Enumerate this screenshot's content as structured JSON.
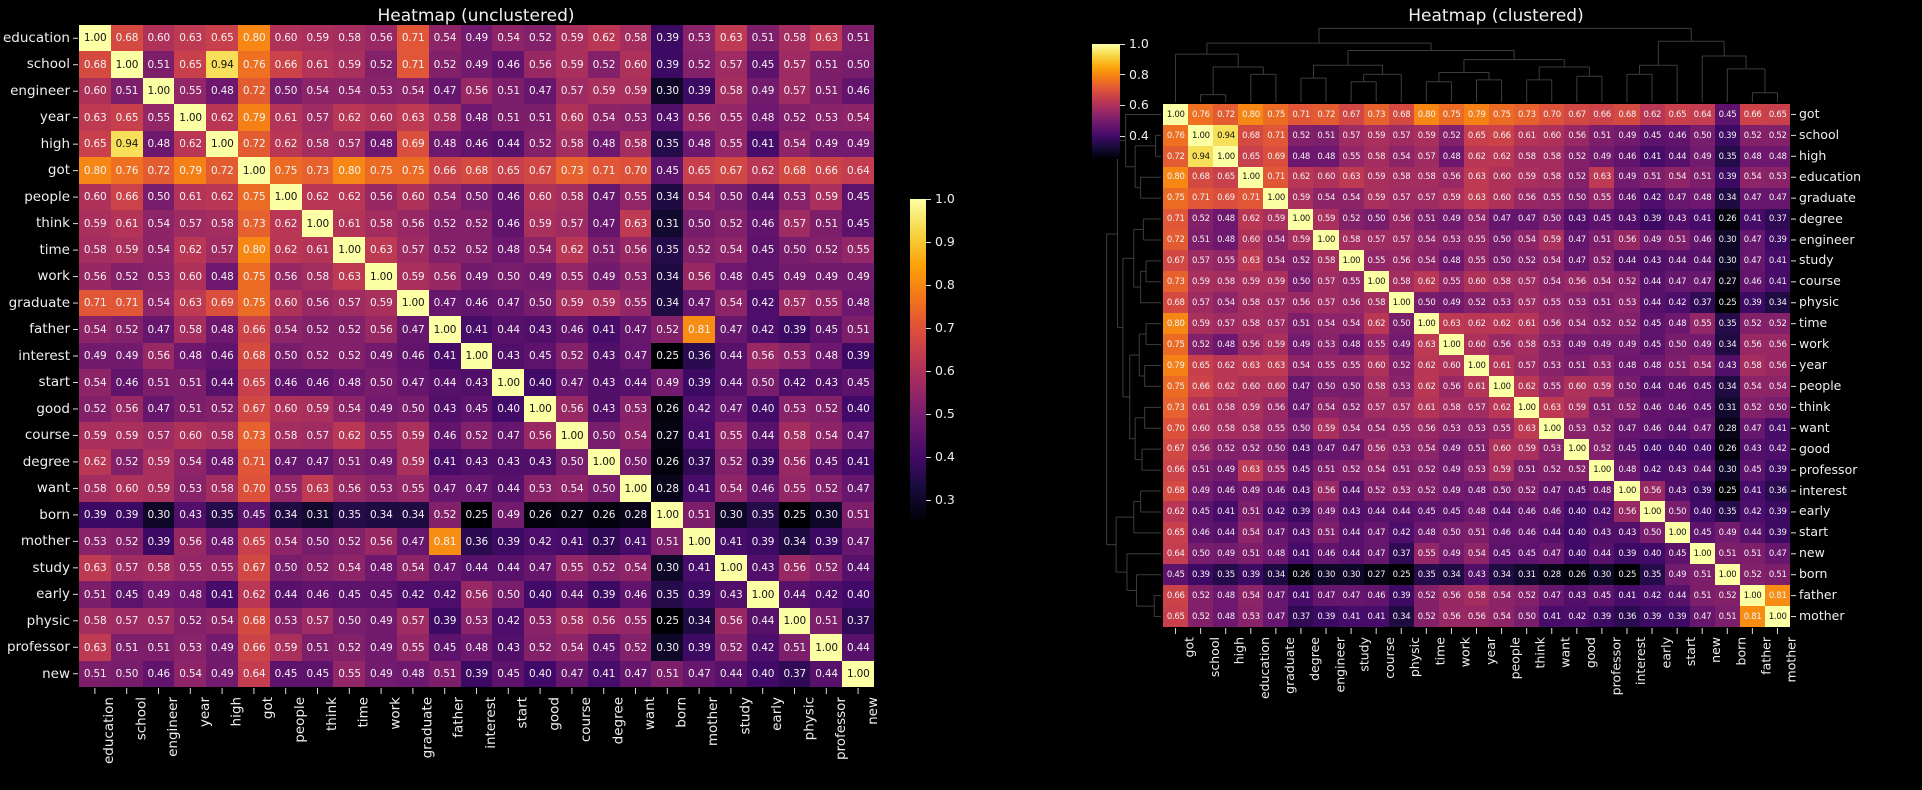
{
  "chart_data": {
    "type": "heatmap",
    "panels": [
      {
        "title": "Heatmap (unclustered)",
        "order": "original"
      },
      {
        "title": "Heatmap (clustered)",
        "order": "clustered",
        "dendrograms": [
          "top",
          "left"
        ]
      }
    ],
    "labels": [
      "education",
      "school",
      "engineer",
      "year",
      "high",
      "got",
      "people",
      "think",
      "time",
      "work",
      "graduate",
      "father",
      "interest",
      "start",
      "good",
      "course",
      "degree",
      "want",
      "born",
      "mother",
      "study",
      "early",
      "physic",
      "professor",
      "new"
    ],
    "clustered_order": [
      "got",
      "school",
      "high",
      "education",
      "graduate",
      "degree",
      "engineer",
      "study",
      "course",
      "physic",
      "time",
      "work",
      "year",
      "people",
      "think",
      "want",
      "good",
      "professor",
      "interest",
      "early",
      "start",
      "new",
      "born",
      "father",
      "mother"
    ],
    "matrix": [
      [
        1.0,
        0.68,
        0.6,
        0.63,
        0.65,
        0.8,
        0.6,
        0.59,
        0.58,
        0.56,
        0.71,
        0.54,
        0.49,
        0.54,
        0.52,
        0.59,
        0.62,
        0.58,
        0.39,
        0.53,
        0.63,
        0.51,
        0.58,
        0.63,
        0.51
      ],
      [
        0.68,
        1.0,
        0.51,
        0.65,
        0.94,
        0.76,
        0.66,
        0.61,
        0.59,
        0.52,
        0.71,
        0.52,
        0.49,
        0.46,
        0.56,
        0.59,
        0.52,
        0.6,
        0.39,
        0.52,
        0.57,
        0.45,
        0.57,
        0.51,
        0.5
      ],
      [
        0.6,
        0.51,
        1.0,
        0.55,
        0.48,
        0.72,
        0.5,
        0.54,
        0.54,
        0.53,
        0.54,
        0.47,
        0.56,
        0.51,
        0.47,
        0.57,
        0.59,
        0.59,
        0.3,
        0.39,
        0.58,
        0.49,
        0.57,
        0.51,
        0.46
      ],
      [
        0.63,
        0.65,
        0.55,
        1.0,
        0.62,
        0.79,
        0.61,
        0.57,
        0.62,
        0.6,
        0.63,
        0.58,
        0.48,
        0.51,
        0.51,
        0.6,
        0.54,
        0.53,
        0.43,
        0.56,
        0.55,
        0.48,
        0.52,
        0.53,
        0.54
      ],
      [
        0.65,
        0.94,
        0.48,
        0.62,
        1.0,
        0.72,
        0.62,
        0.58,
        0.57,
        0.48,
        0.69,
        0.48,
        0.46,
        0.44,
        0.52,
        0.58,
        0.48,
        0.58,
        0.35,
        0.48,
        0.55,
        0.41,
        0.54,
        0.49,
        0.49
      ],
      [
        0.8,
        0.76,
        0.72,
        0.79,
        0.72,
        1.0,
        0.75,
        0.73,
        0.8,
        0.75,
        0.75,
        0.66,
        0.68,
        0.65,
        0.67,
        0.73,
        0.71,
        0.7,
        0.45,
        0.65,
        0.67,
        0.62,
        0.68,
        0.66,
        0.64
      ],
      [
        0.6,
        0.66,
        0.5,
        0.61,
        0.62,
        0.75,
        1.0,
        0.62,
        0.62,
        0.56,
        0.6,
        0.54,
        0.5,
        0.46,
        0.6,
        0.58,
        0.47,
        0.55,
        0.34,
        0.54,
        0.5,
        0.44,
        0.53,
        0.59,
        0.45
      ],
      [
        0.59,
        0.61,
        0.54,
        0.57,
        0.58,
        0.73,
        0.62,
        1.0,
        0.61,
        0.58,
        0.56,
        0.52,
        0.52,
        0.46,
        0.59,
        0.57,
        0.47,
        0.63,
        0.31,
        0.5,
        0.52,
        0.46,
        0.57,
        0.51,
        0.45
      ],
      [
        0.58,
        0.59,
        0.54,
        0.62,
        0.57,
        0.8,
        0.62,
        0.61,
        1.0,
        0.63,
        0.57,
        0.52,
        0.52,
        0.48,
        0.54,
        0.62,
        0.51,
        0.56,
        0.35,
        0.52,
        0.54,
        0.45,
        0.5,
        0.52,
        0.55
      ],
      [
        0.56,
        0.52,
        0.53,
        0.6,
        0.48,
        0.75,
        0.56,
        0.58,
        0.63,
        1.0,
        0.59,
        0.56,
        0.49,
        0.5,
        0.49,
        0.55,
        0.49,
        0.53,
        0.34,
        0.56,
        0.48,
        0.45,
        0.49,
        0.49,
        0.49
      ],
      [
        0.71,
        0.71,
        0.54,
        0.63,
        0.69,
        0.75,
        0.6,
        0.56,
        0.57,
        0.59,
        1.0,
        0.47,
        0.46,
        0.47,
        0.5,
        0.59,
        0.59,
        0.55,
        0.34,
        0.47,
        0.54,
        0.42,
        0.57,
        0.55,
        0.48
      ],
      [
        0.54,
        0.52,
        0.47,
        0.58,
        0.48,
        0.66,
        0.54,
        0.52,
        0.52,
        0.56,
        0.47,
        1.0,
        0.41,
        0.44,
        0.43,
        0.46,
        0.41,
        0.47,
        0.52,
        0.81,
        0.47,
        0.42,
        0.39,
        0.45,
        0.51
      ],
      [
        0.49,
        0.49,
        0.56,
        0.48,
        0.46,
        0.68,
        0.5,
        0.52,
        0.52,
        0.49,
        0.46,
        0.41,
        1.0,
        0.43,
        0.45,
        0.52,
        0.43,
        0.47,
        0.25,
        0.36,
        0.44,
        0.56,
        0.53,
        0.48,
        0.39
      ],
      [
        0.54,
        0.46,
        0.51,
        0.51,
        0.44,
        0.65,
        0.46,
        0.46,
        0.48,
        0.5,
        0.47,
        0.44,
        0.43,
        1.0,
        0.4,
        0.47,
        0.43,
        0.44,
        0.49,
        0.39,
        0.44,
        0.5,
        0.42,
        0.43,
        0.45
      ],
      [
        0.52,
        0.56,
        0.47,
        0.51,
        0.52,
        0.67,
        0.6,
        0.59,
        0.54,
        0.49,
        0.5,
        0.43,
        0.45,
        0.4,
        1.0,
        0.56,
        0.43,
        0.53,
        0.26,
        0.42,
        0.47,
        0.4,
        0.53,
        0.52,
        0.4
      ],
      [
        0.59,
        0.59,
        0.57,
        0.6,
        0.58,
        0.73,
        0.58,
        0.57,
        0.62,
        0.55,
        0.59,
        0.46,
        0.52,
        0.47,
        0.56,
        1.0,
        0.5,
        0.54,
        0.27,
        0.41,
        0.55,
        0.44,
        0.58,
        0.54,
        0.47
      ],
      [
        0.62,
        0.52,
        0.59,
        0.54,
        0.48,
        0.71,
        0.47,
        0.47,
        0.51,
        0.49,
        0.59,
        0.41,
        0.43,
        0.43,
        0.43,
        0.5,
        1.0,
        0.5,
        0.26,
        0.37,
        0.52,
        0.39,
        0.56,
        0.45,
        0.41
      ],
      [
        0.58,
        0.6,
        0.59,
        0.53,
        0.58,
        0.7,
        0.55,
        0.63,
        0.56,
        0.53,
        0.55,
        0.47,
        0.47,
        0.44,
        0.53,
        0.54,
        0.5,
        1.0,
        0.28,
        0.41,
        0.54,
        0.46,
        0.55,
        0.52,
        0.47
      ],
      [
        0.39,
        0.39,
        0.3,
        0.43,
        0.35,
        0.45,
        0.34,
        0.31,
        0.35,
        0.34,
        0.34,
        0.52,
        0.25,
        0.49,
        0.26,
        0.27,
        0.26,
        0.28,
        1.0,
        0.51,
        0.3,
        0.35,
        0.25,
        0.3,
        0.51
      ],
      [
        0.53,
        0.52,
        0.39,
        0.56,
        0.48,
        0.65,
        0.54,
        0.5,
        0.52,
        0.56,
        0.47,
        0.81,
        0.36,
        0.39,
        0.42,
        0.41,
        0.37,
        0.41,
        0.51,
        1.0,
        0.41,
        0.39,
        0.34,
        0.39,
        0.47
      ],
      [
        0.63,
        0.57,
        0.58,
        0.55,
        0.55,
        0.67,
        0.5,
        0.52,
        0.54,
        0.48,
        0.54,
        0.47,
        0.44,
        0.44,
        0.47,
        0.55,
        0.52,
        0.54,
        0.3,
        0.41,
        1.0,
        0.43,
        0.56,
        0.52,
        0.44
      ],
      [
        0.51,
        0.45,
        0.49,
        0.48,
        0.41,
        0.62,
        0.44,
        0.46,
        0.45,
        0.45,
        0.42,
        0.42,
        0.56,
        0.5,
        0.4,
        0.44,
        0.39,
        0.46,
        0.35,
        0.39,
        0.43,
        1.0,
        0.44,
        0.42,
        0.4
      ],
      [
        0.58,
        0.57,
        0.57,
        0.52,
        0.54,
        0.68,
        0.53,
        0.57,
        0.5,
        0.49,
        0.57,
        0.39,
        0.53,
        0.42,
        0.53,
        0.58,
        0.56,
        0.55,
        0.25,
        0.34,
        0.56,
        0.44,
        1.0,
        0.51,
        0.37
      ],
      [
        0.63,
        0.51,
        0.51,
        0.53,
        0.49,
        0.66,
        0.59,
        0.51,
        0.52,
        0.49,
        0.55,
        0.45,
        0.48,
        0.43,
        0.52,
        0.54,
        0.45,
        0.52,
        0.3,
        0.39,
        0.52,
        0.42,
        0.51,
        1.0,
        0.44
      ],
      [
        0.51,
        0.5,
        0.46,
        0.54,
        0.49,
        0.64,
        0.45,
        0.45,
        0.55,
        0.49,
        0.48,
        0.51,
        0.39,
        0.45,
        0.4,
        0.47,
        0.41,
        0.47,
        0.51,
        0.47,
        0.44,
        0.4,
        0.37,
        0.44,
        1.0
      ]
    ],
    "colormap": {
      "name": "inferno",
      "vmin": 0.25,
      "vmax": 1.0,
      "stops": [
        [
          0,
          "#000004"
        ],
        [
          0.1,
          "#160b39"
        ],
        [
          0.2,
          "#420a68"
        ],
        [
          0.3,
          "#6a176e"
        ],
        [
          0.4,
          "#932667"
        ],
        [
          0.5,
          "#bc3754"
        ],
        [
          0.6,
          "#dd513a"
        ],
        [
          0.7,
          "#f37819"
        ],
        [
          0.8,
          "#fca50a"
        ],
        [
          0.9,
          "#f6d746"
        ],
        [
          1,
          "#fcffa4"
        ]
      ]
    },
    "colorbar_left": {
      "tick_labels": [
        "1.0",
        "0.9",
        "0.8",
        "0.7",
        "0.6",
        "0.5",
        "0.4",
        "0.3"
      ],
      "tick_values": [
        1.0,
        0.9,
        0.8,
        0.7,
        0.6,
        0.5,
        0.4,
        0.3
      ]
    },
    "colorbar_right": {
      "tick_labels": [
        "1.0",
        "0.8",
        "0.6",
        "0.4"
      ],
      "tick_values": [
        1.0,
        0.8,
        0.6,
        0.4
      ]
    },
    "dendrogram_tree": [
      0.8,
      [
        0.64,
        [
          0.52,
          "got",
          [
            0.38,
            [
              0.08,
              "school",
              "high"
            ],
            [
              0.3,
              "education",
              "graduate"
            ]
          ]
        ],
        [
          0.56,
          [
            0.4,
            [
              0.26,
              "degree",
              "engineer"
            ],
            [
              0.3,
              [
                0.22,
                "study",
                "course"
              ],
              "physic"
            ]
          ],
          [
            0.46,
            [
              0.32,
              [
                0.22,
                "time",
                "work"
              ],
              [
                0.24,
                "year",
                "people"
              ]
            ],
            [
              0.38,
              [
                0.24,
                "think",
                "want"
              ],
              [
                0.28,
                "good",
                "professor"
              ]
            ]
          ]
        ]
      ],
      [
        0.66,
        [
          0.4,
          [
            0.3,
            "interest",
            "early"
          ],
          "start"
        ],
        [
          0.5,
          "new",
          [
            0.36,
            "born",
            [
              0.1,
              "father",
              "mother"
            ]
          ]
        ]
      ]
    ],
    "style": {
      "background": "#000000",
      "text_color": "#eeeeee",
      "annot_light": "#f2f2f2",
      "annot_dark": "#141414",
      "dendrogram_color": "#3d3d3d",
      "tick_color": "#dddddd"
    }
  },
  "titles": {
    "unclustered": "Heatmap (unclustered)",
    "clustered": "Heatmap (clustered)"
  }
}
